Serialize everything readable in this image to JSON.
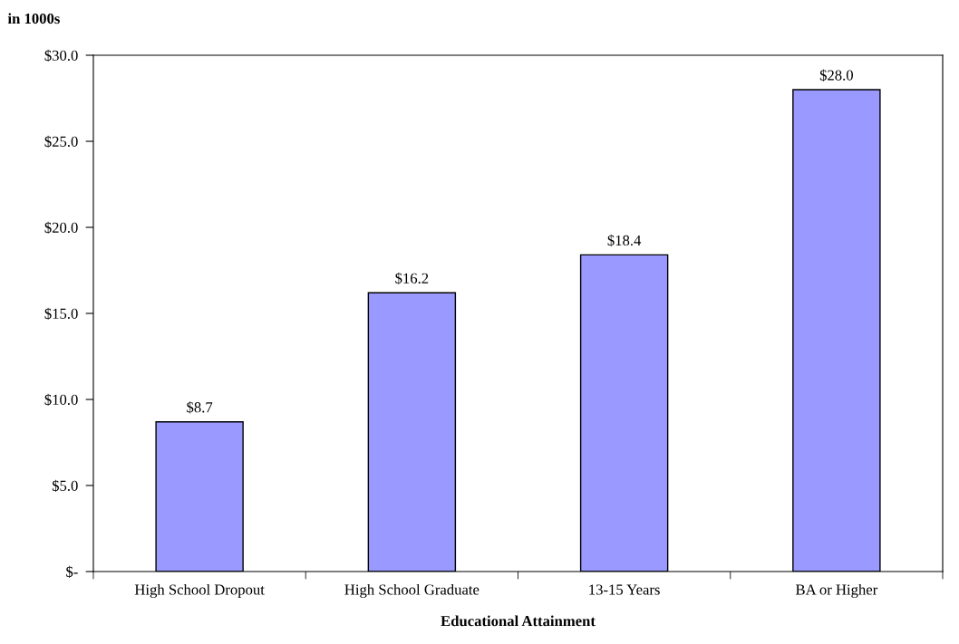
{
  "chart_data": {
    "type": "bar",
    "ylabel": "in 1000s",
    "xlabel": "Educational Attainment",
    "categories": [
      "High School Dropout",
      "High School Graduate",
      "13-15 Years",
      "BA or Higher"
    ],
    "values": [
      8.7,
      16.2,
      18.4,
      28.0
    ],
    "value_labels": [
      "$8.7",
      "$16.2",
      "$18.4",
      "$28.0"
    ],
    "color": "#9999ff",
    "ylim": [
      0,
      30
    ],
    "yticks": [
      {
        "value": 0,
        "label": "$-"
      },
      {
        "value": 5,
        "label": "$5.0"
      },
      {
        "value": 10,
        "label": "$10.0"
      },
      {
        "value": 15,
        "label": "$15.0"
      },
      {
        "value": 20,
        "label": "$20.0"
      },
      {
        "value": 25,
        "label": "$25.0"
      },
      {
        "value": 30,
        "label": "$30.0"
      }
    ],
    "grid": false,
    "legend": false
  }
}
